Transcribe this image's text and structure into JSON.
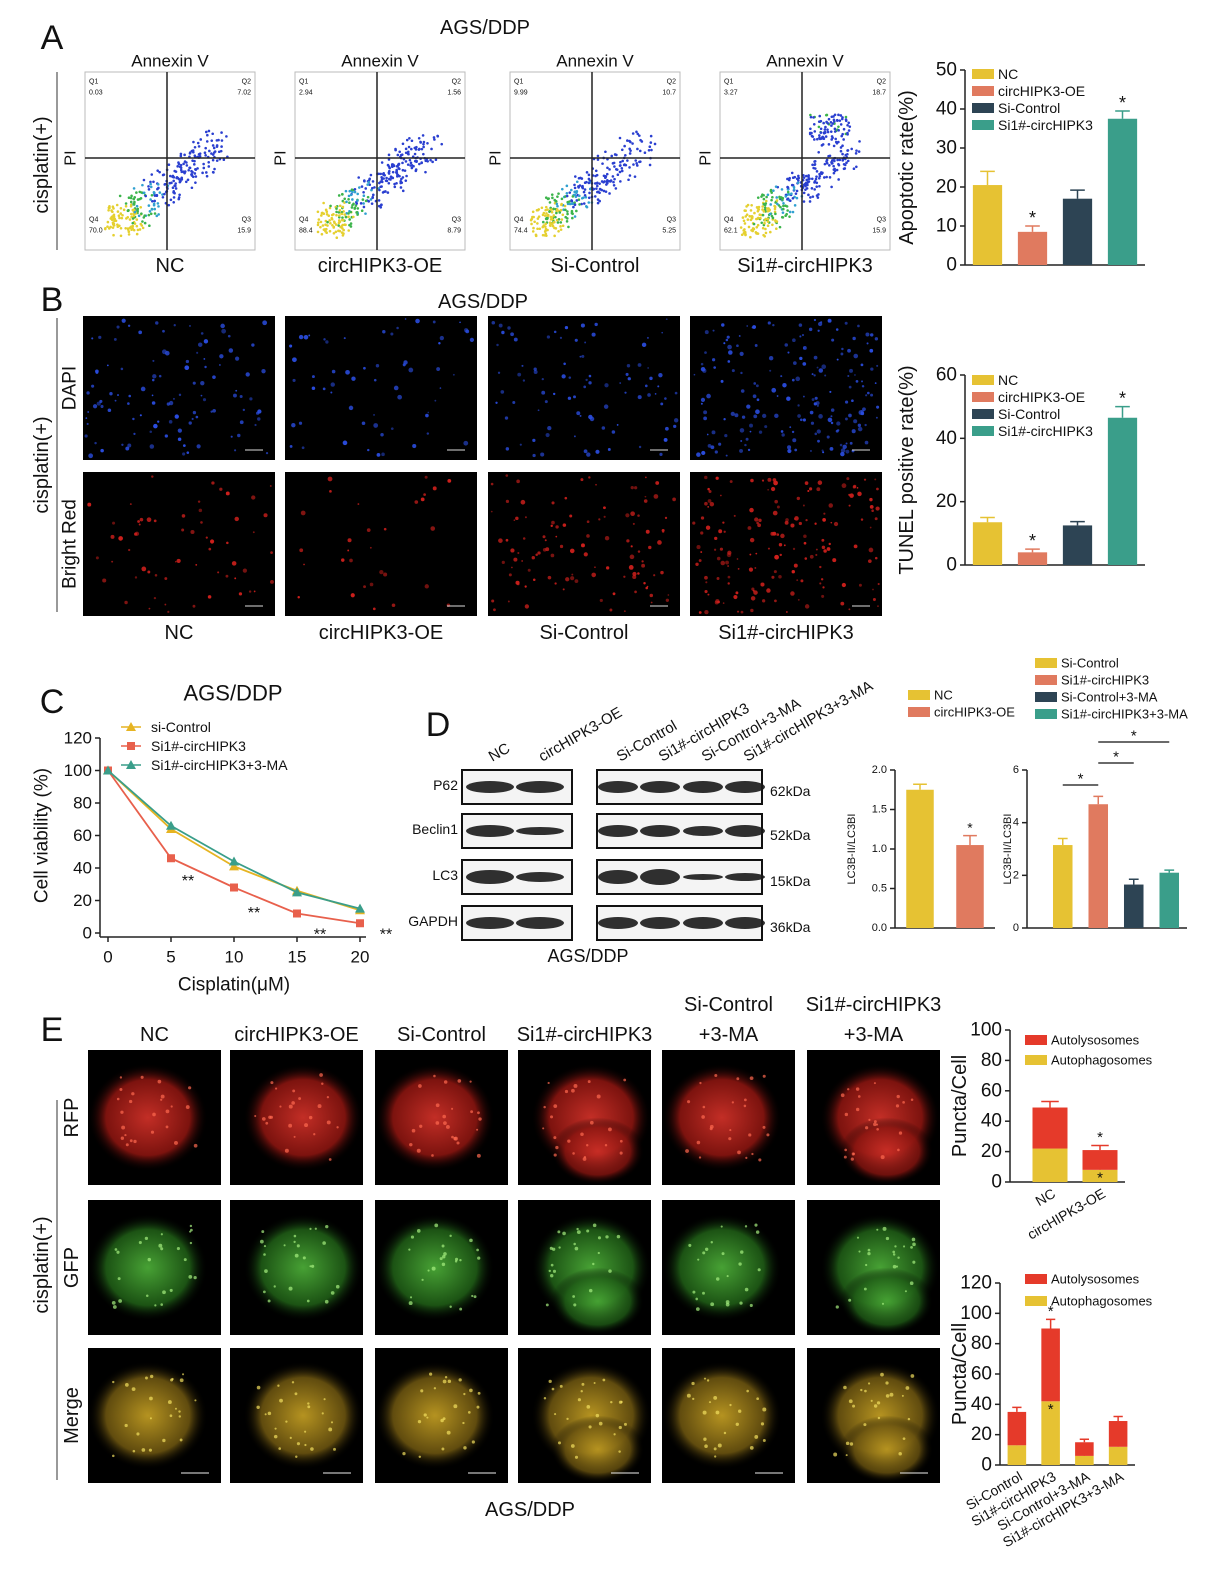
{
  "figure": {
    "A": {
      "label": "A",
      "title": "AGS/DDP",
      "side_label": "cisplatin(+)",
      "plots": [
        {
          "x_axis": "Annexin V",
          "y_axis": "PI",
          "name": "NC",
          "quadrants": [
            "Q1",
            "Q2",
            "Q4",
            "Q3"
          ],
          "quadrant_values": [
            "0.03",
            "7.02",
            "70.0",
            "15.9"
          ]
        },
        {
          "x_axis": "Annexin V",
          "y_axis": "PI",
          "name": "circHIPK3-OE",
          "quadrants": [
            "Q1",
            "Q2",
            "Q4",
            "Q3"
          ],
          "quadrant_values": [
            "2.94",
            "1.56",
            "88.4",
            "8.79"
          ]
        },
        {
          "x_axis": "Annexin V",
          "y_axis": "PI",
          "name": "Si-Control",
          "quadrants": [
            "Q1",
            "Q2",
            "Q4",
            "Q3"
          ],
          "quadrant_values": [
            "9.99",
            "10.7",
            "74.4",
            "5.25"
          ]
        },
        {
          "x_axis": "Annexin V",
          "y_axis": "PI",
          "name": "Si1#-circHIPK3",
          "quadrants": [
            "Q1",
            "Q2",
            "Q4",
            "Q3"
          ],
          "quadrant_values": [
            "3.27",
            "18.7",
            "62.1",
            "15.9"
          ]
        }
      ]
    },
    "B": {
      "label": "B",
      "title": "AGS/DDP",
      "side_label": "cisplatin(+)",
      "rows": [
        "DAPI",
        "Bright Red"
      ],
      "columns": [
        "NC",
        "circHIPK3-OE",
        "Si-Control",
        "Si1#-circHIPK3"
      ]
    },
    "C": {
      "label": "C"
    },
    "D": {
      "label": "D",
      "lanes": [
        "NC",
        "circHIPK3-OE",
        "Si-Control",
        "Si1#-circHIPK3",
        "Si-Control+3-MA",
        "Si1#-circHIPK3+3-MA"
      ],
      "proteins": [
        "P62",
        "Beclin1",
        "LC3",
        "GAPDH"
      ],
      "sizes": [
        "62kDa",
        "52kDa",
        "15kDa",
        "36kDa"
      ],
      "caption": "AGS/DDP"
    },
    "E": {
      "label": "E",
      "side_label": "cisplatin(+)",
      "rows": [
        "RFP",
        "GFP",
        "Merge"
      ],
      "caption": "AGS/DDP",
      "columns": [
        [
          "NC"
        ],
        [
          "circHIPK3-OE"
        ],
        [
          "Si-Control"
        ],
        [
          "Si1#-circHIPK3"
        ],
        [
          "Si-Control",
          "+3-MA"
        ],
        [
          "Si1#-circHIPK3",
          "+3-MA"
        ]
      ]
    }
  },
  "chart_data": [
    {
      "type": "bar",
      "y_label": "Apoptotic rate(%)",
      "categories": [
        "NC",
        "circHIPK3-OE",
        "Si-Control",
        "Si1#-circHIPK3"
      ],
      "values": [
        20.5,
        8.5,
        17,
        37.5
      ],
      "errors": [
        3.5,
        1.5,
        2.2,
        2
      ],
      "colors": [
        "#e6c233",
        "#e07a5f",
        "#2d4454",
        "#3a9e8a"
      ],
      "significance": [
        null,
        "*",
        null,
        "*"
      ],
      "ylim": [
        0,
        50
      ],
      "yticks": [
        0,
        10,
        20,
        30,
        40,
        50
      ],
      "category_labels": false,
      "legend": "upper left"
    },
    {
      "type": "bar",
      "y_label": "TUNEL positive rate(%)",
      "categories": [
        "NC",
        "circHIPK3-OE",
        "Si-Control",
        "Si1#-circHIPK3"
      ],
      "values": [
        13.5,
        4,
        12.5,
        46.5
      ],
      "errors": [
        1.5,
        1,
        1.2,
        3.5
      ],
      "colors": [
        "#e6c233",
        "#e07a5f",
        "#2d4454",
        "#3a9e8a"
      ],
      "significance": [
        null,
        "*",
        null,
        "*"
      ],
      "ylim": [
        0,
        60
      ],
      "yticks": [
        0,
        20,
        40,
        60
      ],
      "category_labels": false,
      "legend": "upper left"
    },
    {
      "type": "line",
      "title": "AGS/DDP",
      "x_label": "Cisplatin(μM)",
      "y_label": "Cell viability (%)",
      "x": [
        0,
        5,
        10,
        15,
        20
      ],
      "xlim": [
        0,
        20
      ],
      "xticks": [
        0,
        5,
        10,
        15,
        20
      ],
      "ylim": [
        0,
        120
      ],
      "yticks": [
        0,
        20,
        40,
        60,
        80,
        100,
        120
      ],
      "series": [
        {
          "name": "si-Control",
          "color": "#e6b422",
          "marker": "triangle-up",
          "values": [
            100,
            64,
            41,
            26,
            14
          ]
        },
        {
          "name": "Si1#-circHIPK3",
          "color": "#e8604c",
          "marker": "square",
          "values": [
            100,
            46,
            28,
            12,
            6
          ]
        },
        {
          "name": "Si1#-circHIPK3+3-MA",
          "color": "#3a9e8a",
          "marker": "triangle-up",
          "values": [
            100,
            66,
            44,
            25,
            15
          ]
        }
      ],
      "significance": [
        null,
        "**",
        "**",
        "**",
        "**"
      ],
      "legend": "upper left"
    },
    {
      "type": "bar",
      "y_label": "LC3B-II/LC3BI",
      "categories": [
        "NC",
        "circHIPK3-OE"
      ],
      "values": [
        1.75,
        1.05
      ],
      "errors": [
        0.07,
        0.12
      ],
      "colors": [
        "#e6c233",
        "#e07a5f"
      ],
      "significance": [
        null,
        "*"
      ],
      "ylim": [
        0,
        2
      ],
      "yticks": [
        {
          "value": 0,
          "label": "0.0"
        },
        0.5,
        {
          "value": 1,
          "label": "1.0"
        },
        1.5,
        {
          "value": 2,
          "label": "2.0"
        }
      ],
      "category_labels": false,
      "legend": "upper left"
    },
    {
      "type": "bar",
      "y_label": "LC3B-II/LC3BI",
      "categories": [
        "Si-Control",
        "Si1#-circHIPK3",
        "Si-Control+3-MA",
        "Si1#-circHIPK3+3-MA"
      ],
      "values": [
        3.15,
        4.7,
        1.65,
        2.1
      ],
      "errors": [
        0.25,
        0.3,
        0.2,
        0.1
      ],
      "colors": [
        "#e6c233",
        "#e07a5f",
        "#2d4454",
        "#3a9e8a"
      ],
      "brackets": [
        "*",
        "*",
        "*"
      ],
      "ylim": [
        0,
        6
      ],
      "yticks": [
        0,
        2,
        4,
        6
      ],
      "category_labels": false,
      "legend": "upper left"
    },
    {
      "type": "stacked-bar",
      "y_label": "Puncta/Cell",
      "categories": [
        "NC",
        "circHIPK3-OE"
      ],
      "ylim": [
        0,
        100
      ],
      "yticks": [
        0,
        20,
        40,
        60,
        80,
        100
      ],
      "series": [
        {
          "name": "Autolysosomes",
          "color": "#e53a2a",
          "values": [
            27,
            13
          ],
          "errors": [
            4,
            3
          ],
          "significance": [
            null,
            "*"
          ]
        },
        {
          "name": "Autophagosomes",
          "color": "#e6c233",
          "values": [
            22,
            8
          ],
          "errors": [
            3,
            2
          ],
          "significance": [
            null,
            "*"
          ]
        }
      ],
      "category_labels": true,
      "legend": "upper right"
    },
    {
      "type": "stacked-bar",
      "y_label": "Puncta/Cell",
      "categories": [
        "Si-Control",
        "Si1#-circHIPK3",
        "Si-Control+3-MA",
        "Si1#-circHIPK3+3-MA"
      ],
      "ylim": [
        0,
        120
      ],
      "yticks": [
        0,
        20,
        40,
        60,
        80,
        100,
        120
      ],
      "series": [
        {
          "name": "Autolysosomes",
          "color": "#e53a2a",
          "values": [
            22,
            48,
            9,
            17
          ],
          "errors": [
            3,
            6,
            2,
            3
          ],
          "significance": [
            null,
            "*",
            null,
            null
          ]
        },
        {
          "name": "Autophagosomes",
          "color": "#e6c233",
          "values": [
            13,
            42,
            6,
            12
          ],
          "errors": [
            2,
            5,
            1,
            2
          ],
          "significance": [
            null,
            "*",
            null,
            null
          ]
        }
      ],
      "category_labels": true,
      "legend": "upper right"
    }
  ]
}
